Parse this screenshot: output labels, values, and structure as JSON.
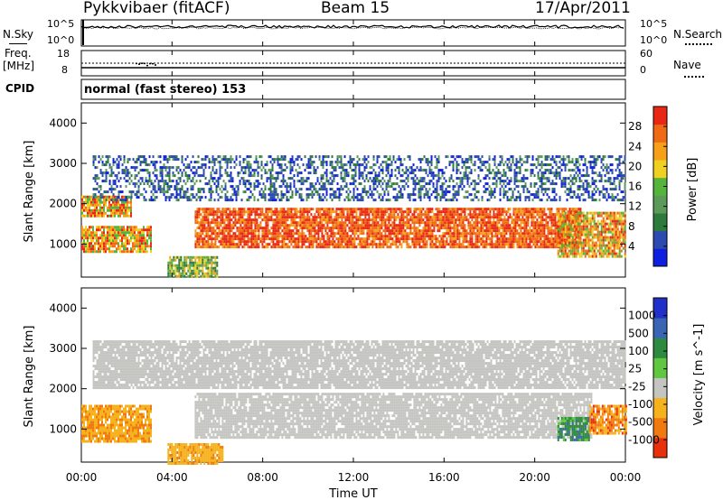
{
  "header": {
    "station": "Pykkvibaer (fitACF)",
    "beam": "Beam 15",
    "date": "17/Apr/2011"
  },
  "noise_panel": {
    "left_label": "N.Sky",
    "left_ticks": [
      "10^5",
      "10^0"
    ],
    "right_ticks": [
      "10^5",
      "10^0"
    ],
    "right_label": "N.Search"
  },
  "freq_panel": {
    "left_label_1": "Freq.",
    "left_label_2": "[MHz]",
    "left_ticks": [
      "18",
      "8"
    ],
    "right_ticks": [
      "60",
      "0"
    ],
    "right_label": "Nave"
  },
  "cpid_panel": {
    "label": "CPID",
    "program": "normal (fast stereo) 153"
  },
  "chart_data": [
    {
      "type": "heatmap",
      "quantity": "power",
      "ylabel": "Slant Range [km]",
      "yticks": [
        1000,
        2000,
        3000,
        4000
      ],
      "ylim": [
        180,
        4500
      ],
      "xlim_hours": [
        0,
        24
      ],
      "colorbar_label": "Power [dB]",
      "colorbar_ticks": [
        "4",
        "8",
        "12",
        "16",
        "20",
        "24",
        "28"
      ],
      "colormap": [
        "#0f1fe0",
        "#2c4ab0",
        "#2e7a3c",
        "#5c9a5a",
        "#55b43c",
        "#f0d020",
        "#f5a018",
        "#ef6a14",
        "#e82814"
      ],
      "regions": [
        {
          "t": [
            0.0,
            2.2
          ],
          "range_km": [
            1700,
            2200
          ],
          "level": "high"
        },
        {
          "t": [
            0.0,
            3.1
          ],
          "range_km": [
            800,
            1450
          ],
          "level": "high"
        },
        {
          "t": [
            3.8,
            6.0
          ],
          "range_km": [
            200,
            700
          ],
          "level": "medium"
        },
        {
          "t": [
            5.0,
            22.0
          ],
          "range_km": [
            900,
            1900
          ],
          "level": "very-high"
        },
        {
          "t": [
            0.5,
            24.0
          ],
          "range_km": [
            2100,
            3200
          ],
          "level": "low"
        },
        {
          "t": [
            21.0,
            24.0
          ],
          "range_km": [
            700,
            1800
          ],
          "level": "high"
        }
      ]
    },
    {
      "type": "heatmap",
      "quantity": "velocity",
      "ylabel": "Slant Range [km]",
      "yticks": [
        1000,
        2000,
        3000,
        4000
      ],
      "ylim": [
        180,
        4500
      ],
      "xlim_hours": [
        0,
        24
      ],
      "colorbar_label": "Velocity [m s^-1]",
      "colorbar_ticks": [
        "1000",
        "500",
        "100",
        "25",
        "-25",
        "-100",
        "-500",
        "-1000"
      ],
      "colormap": [
        "#2030c8",
        "#3a64b4",
        "#2e8a40",
        "#5fc840",
        "#c4c4c0",
        "#f5b21c",
        "#f07a10",
        "#e8300c"
      ],
      "regions": [
        {
          "t": [
            0.0,
            3.1
          ],
          "range_km": [
            700,
            1600
          ],
          "velocity": "-100 to -300"
        },
        {
          "t": [
            3.8,
            6.2
          ],
          "range_km": [
            150,
            650
          ],
          "velocity": "-100"
        },
        {
          "t": [
            5.0,
            22.5
          ],
          "range_km": [
            800,
            1900
          ],
          "velocity": "-25 to 25"
        },
        {
          "t": [
            0.5,
            24.0
          ],
          "range_km": [
            2000,
            3200
          ],
          "velocity": "-25 to 25"
        },
        {
          "t": [
            21.0,
            22.4
          ],
          "range_km": [
            700,
            1300
          ],
          "velocity": "100 to 500"
        },
        {
          "t": [
            22.4,
            24.0
          ],
          "range_km": [
            900,
            1600
          ],
          "velocity": "-100 to -500"
        }
      ]
    }
  ],
  "time_axis": {
    "ticks": [
      "00:00",
      "04:00",
      "08:00",
      "12:00",
      "16:00",
      "20:00",
      "00:00"
    ],
    "label": "Time UT"
  }
}
